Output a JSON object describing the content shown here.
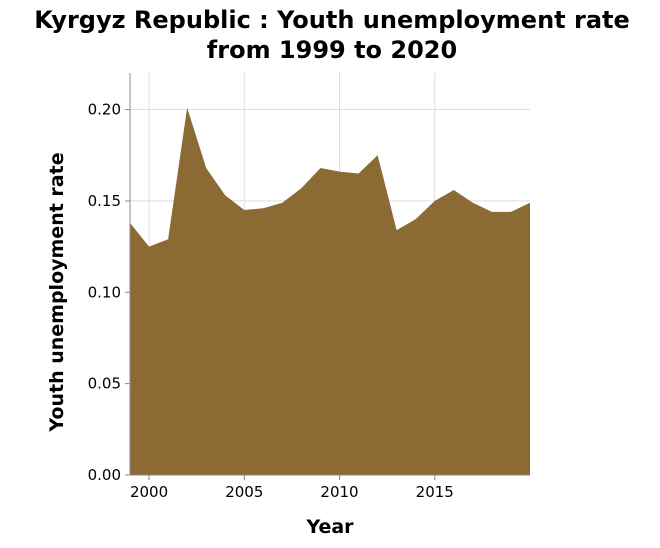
{
  "chart_data": {
    "type": "area",
    "title_lines": [
      "Kyrgyz Republic : Youth unemployment rate",
      "from 1999 to 2020"
    ],
    "xlabel": "Year",
    "ylabel": "Youth unemployment rate",
    "xlim": [
      1999,
      2020
    ],
    "ylim": [
      0,
      0.22
    ],
    "x_ticks": [
      2000,
      2005,
      2010,
      2015
    ],
    "x_tick_labels": [
      "2000",
      "2005",
      "2010",
      "2015"
    ],
    "y_ticks": [
      0,
      0.05,
      0.1,
      0.15,
      0.2
    ],
    "y_tick_labels": [
      "0.00",
      "0.05",
      "0.10",
      "0.15",
      "0.20"
    ],
    "grid": true,
    "fill_color": "#8b6a34",
    "x": [
      1999,
      2000,
      2001,
      2002,
      2003,
      2004,
      2005,
      2006,
      2007,
      2008,
      2009,
      2010,
      2011,
      2012,
      2013,
      2014,
      2015,
      2016,
      2017,
      2018,
      2019,
      2020
    ],
    "y": [
      0.138,
      0.125,
      0.129,
      0.201,
      0.168,
      0.153,
      0.145,
      0.146,
      0.149,
      0.157,
      0.168,
      0.166,
      0.165,
      0.175,
      0.134,
      0.14,
      0.15,
      0.156,
      0.149,
      0.144,
      0.144,
      0.149
    ]
  }
}
